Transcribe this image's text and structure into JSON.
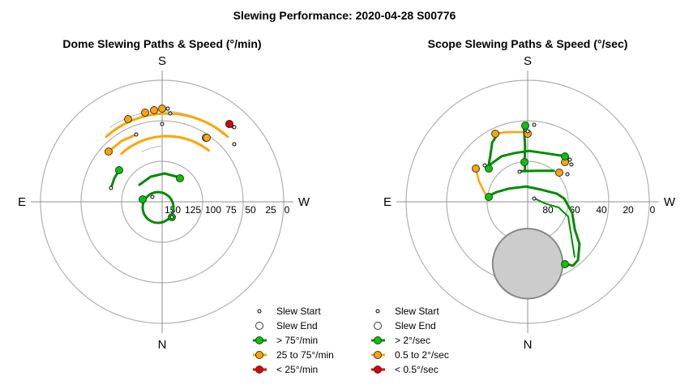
{
  "title": "Slewing Performance: 2020-04-28 S00776",
  "directions": {
    "top": "S",
    "bottom": "N",
    "left": "E",
    "right": "W"
  },
  "colors": {
    "green": "#00c800",
    "green_line": "#008c00",
    "orange": "#ffa500",
    "red": "#dd0000",
    "ring": "#b0b0b0",
    "axis": "#909090",
    "moon_fill": "#cccccc",
    "moon_stroke": "#888888"
  },
  "chart_data": [
    {
      "type": "polar",
      "title": "Dome Slewing Paths & Speed (°/min)",
      "radial_ticks": [
        "150",
        "125",
        "100",
        "75",
        "50",
        "25",
        "0"
      ],
      "legend": [
        {
          "label": "Slew Start",
          "kind": "start"
        },
        {
          "label": "Slew End",
          "kind": "end"
        },
        {
          "label": "> 75°/min",
          "kind": "line",
          "color": "green"
        },
        {
          "label": "25 to 75°/min",
          "kind": "line",
          "color": "orange"
        },
        {
          "label": "< 25°/min",
          "kind": "line",
          "color": "red"
        }
      ],
      "paths": [
        {
          "color": "orange",
          "start": [
            -12,
            98
          ],
          "end": [
            104,
            143
          ]
        },
        {
          "color": "orange",
          "start": [
            -8,
            111
          ],
          "end": [
            -90,
            134
          ]
        },
        {
          "color": "orange",
          "start": [
            -20,
            63
          ],
          "end": [
            66,
            96
          ]
        },
        {
          "color": "orange",
          "start": [
            -100,
            162
          ],
          "end": [
            -107,
            171
          ]
        },
        {
          "color": "red",
          "start": [
            25,
            87
          ],
          "end": [
            21,
            101
          ]
        },
        {
          "color": "green",
          "start": [
            -54,
            102
          ],
          "end": [
            -102,
            134
          ]
        },
        {
          "color": "green",
          "start": [
            130,
            124
          ],
          "end": [
            58,
            116
          ]
        },
        {
          "color": "green",
          "start": [
            150,
            179
          ],
          "end": [
            -12,
            170
          ]
        }
      ]
    },
    {
      "type": "polar",
      "title": "Scope Slewing Paths & Speed (°/sec)",
      "radial_ticks": [
        "80",
        "60",
        "40",
        "20",
        "0"
      ],
      "legend": [
        {
          "label": "Slew Start",
          "kind": "start"
        },
        {
          "label": "Slew End",
          "kind": "end"
        },
        {
          "label": "> 2°/sec",
          "kind": "line",
          "color": "green"
        },
        {
          "label": "0.5 to 2°/sec",
          "kind": "line",
          "color": "orange"
        },
        {
          "label": "< 0.5°/sec",
          "kind": "line",
          "color": "red"
        }
      ],
      "moon": {
        "azimuth": 0,
        "radius_value": 46,
        "size_deg": 12
      }
    }
  ],
  "legend_symbols": {
    "start": "small open circle",
    "end": "open circle"
  }
}
